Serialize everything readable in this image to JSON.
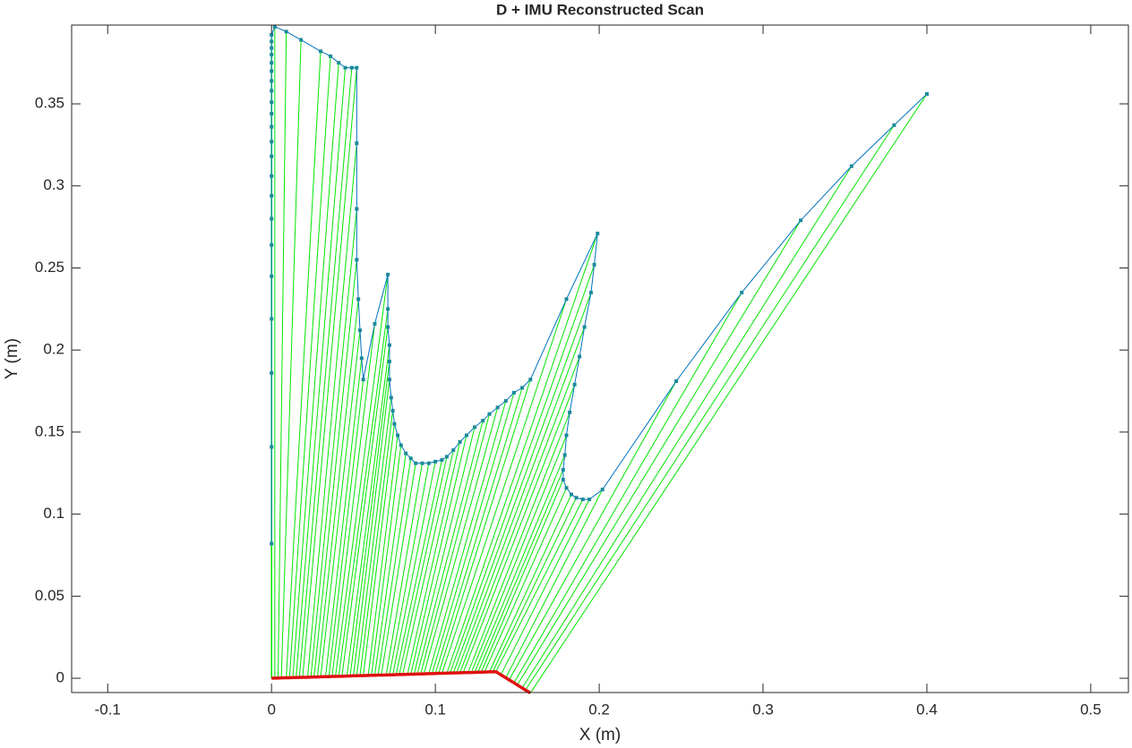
{
  "chart_data": {
    "type": "scan",
    "title": "D + IMU Reconstructed Scan",
    "xlabel": "X (m)",
    "ylabel": "Y (m)",
    "xlim": [
      -0.122,
      0.523
    ],
    "ylim": [
      -0.0087,
      0.398
    ],
    "xticks": [
      -0.1,
      0,
      0.1,
      0.2,
      0.3,
      0.4,
      0.5
    ],
    "yticks": [
      0,
      0.05,
      0.1,
      0.15,
      0.2,
      0.25,
      0.3,
      0.35
    ],
    "ray_color": "#00e600",
    "series": [
      {
        "color": "#0072bd",
        "marker_color": "#1a8a9a",
        "x": [
          0,
          0,
          0,
          0,
          0,
          0,
          0,
          0,
          0,
          0,
          0,
          0,
          0,
          0,
          0,
          0,
          0,
          0,
          0,
          0,
          0,
          0,
          0.002,
          0.009,
          0.018,
          0.03,
          0.036,
          0.041,
          0.045,
          0.049,
          0.052,
          0.052,
          0.052,
          0.052,
          0.053,
          0.054,
          0.055,
          0.056,
          0.063,
          0.071,
          0.071,
          0.071,
          0.072,
          0.072,
          0.072,
          0.073,
          0.074,
          0.075,
          0.077,
          0.079,
          0.082,
          0.085,
          0.088,
          0.092,
          0.096,
          0.1,
          0.104,
          0.107,
          0.111,
          0.115,
          0.119,
          0.124,
          0.129,
          0.133,
          0.138,
          0.143,
          0.148,
          0.153,
          0.158,
          0.18,
          0.199,
          0.197,
          0.195,
          0.191,
          0.188,
          0.185,
          0.182,
          0.18,
          0.179,
          0.178,
          0.178,
          0.18,
          0.183,
          0.186,
          0.19,
          0.194,
          0.202,
          0.247,
          0.287,
          0.323,
          0.354,
          0.38,
          0.4
        ],
        "y": [
          0.082,
          0.141,
          0.186,
          0.219,
          0.245,
          0.264,
          0.28,
          0.294,
          0.306,
          0.318,
          0.327,
          0.336,
          0.344,
          0.351,
          0.358,
          0.364,
          0.37,
          0.375,
          0.38,
          0.384,
          0.388,
          0.392,
          0.397,
          0.394,
          0.389,
          0.382,
          0.379,
          0.375,
          0.372,
          0.372,
          0.372,
          0.326,
          0.286,
          0.255,
          0.231,
          0.212,
          0.195,
          0.182,
          0.216,
          0.246,
          0.225,
          0.214,
          0.203,
          0.193,
          0.182,
          0.171,
          0.163,
          0.155,
          0.148,
          0.142,
          0.137,
          0.134,
          0.131,
          0.131,
          0.131,
          0.132,
          0.133,
          0.135,
          0.139,
          0.144,
          0.148,
          0.153,
          0.157,
          0.161,
          0.165,
          0.169,
          0.174,
          0.177,
          0.182,
          0.231,
          0.271,
          0.252,
          0.235,
          0.214,
          0.196,
          0.179,
          0.162,
          0.148,
          0.136,
          0.127,
          0.121,
          0.116,
          0.112,
          0.11,
          0.109,
          0.109,
          0.115,
          0.181,
          0.235,
          0.279,
          0.312,
          0.337,
          0.356
        ]
      },
      {
        "color": "#e01010",
        "x": [
          0,
          0,
          0,
          0,
          0,
          0,
          0,
          0,
          0,
          0,
          0,
          0,
          0,
          0,
          0,
          0,
          0,
          0,
          0,
          0,
          0,
          0,
          0.002,
          0.004,
          0.006,
          0.009,
          0.011,
          0.013,
          0.015,
          0.017,
          0.019,
          0.022,
          0.024,
          0.026,
          0.028,
          0.03,
          0.033,
          0.035,
          0.037,
          0.039,
          0.041,
          0.043,
          0.046,
          0.048,
          0.05,
          0.052,
          0.054,
          0.056,
          0.059,
          0.061,
          0.063,
          0.065,
          0.067,
          0.07,
          0.072,
          0.074,
          0.076,
          0.078,
          0.08,
          0.083,
          0.085,
          0.087,
          0.089,
          0.091,
          0.093,
          0.096,
          0.098,
          0.1,
          0.102,
          0.104,
          0.107,
          0.109,
          0.111,
          0.113,
          0.115,
          0.117,
          0.12,
          0.122,
          0.124,
          0.126,
          0.128,
          0.13,
          0.133,
          0.135,
          0.137,
          0.14,
          0.143,
          0.145,
          0.148,
          0.15,
          0.153,
          0.155,
          0.158
        ],
        "y": [
          0,
          0,
          0,
          0,
          0,
          0,
          0,
          0,
          0,
          0,
          0,
          0,
          0,
          0,
          0,
          0,
          0,
          0,
          0,
          0,
          0,
          0,
          0.0001,
          0.0001,
          0.0002,
          0.0003,
          0.0003,
          0.0004,
          0.0004,
          0.0005,
          0.0006,
          0.0006,
          0.0007,
          0.0008,
          0.0008,
          0.0009,
          0.001,
          0.001,
          0.0011,
          0.0011,
          0.0012,
          0.0012,
          0.0013,
          0.0014,
          0.0015,
          0.0015,
          0.0016,
          0.0016,
          0.0017,
          0.0018,
          0.0018,
          0.0019,
          0.0019,
          0.002,
          0.0021,
          0.0021,
          0.0022,
          0.0023,
          0.0023,
          0.0024,
          0.0025,
          0.0025,
          0.0026,
          0.0026,
          0.0027,
          0.0028,
          0.0028,
          0.0029,
          0.003,
          0.003,
          0.0031,
          0.0032,
          0.0032,
          0.0033,
          0.0033,
          0.0034,
          0.0035,
          0.0035,
          0.0036,
          0.0037,
          0.0037,
          0.0038,
          0.0039,
          0.0039,
          0.004,
          0.0021,
          0.0003,
          -0.001,
          -0.0028,
          -0.0041,
          -0.0059,
          -0.0072,
          -0.009
        ]
      }
    ]
  }
}
